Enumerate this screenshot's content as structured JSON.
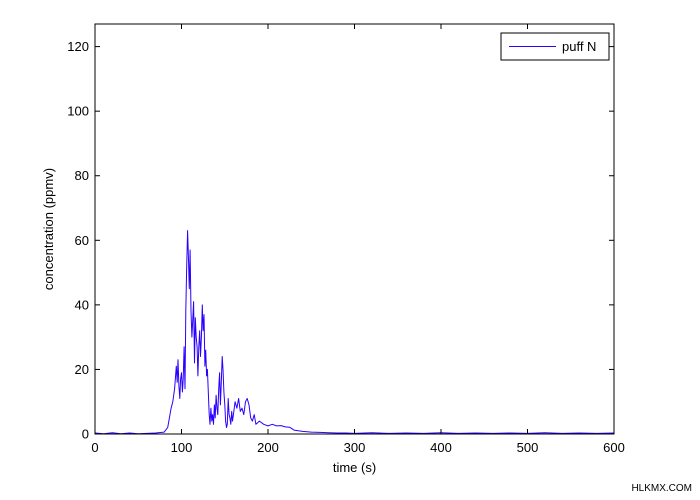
{
  "chart_data": {
    "type": "line",
    "title": "",
    "xlabel": "time (s)",
    "ylabel": "concentration (ppmv)",
    "xlim": [
      0,
      600
    ],
    "ylim": [
      0,
      127
    ],
    "xticks": [
      0,
      100,
      200,
      300,
      400,
      500,
      600
    ],
    "yticks": [
      0,
      20,
      40,
      60,
      80,
      100,
      120
    ],
    "grid": false,
    "legend_position": "top-right",
    "series": [
      {
        "name": "puff N",
        "color": "#2a00ff",
        "x": [
          0,
          10,
          20,
          30,
          40,
          50,
          60,
          70,
          80,
          84,
          86,
          88,
          90,
          92,
          94,
          95,
          96,
          97,
          98,
          99,
          100,
          101,
          102,
          103,
          104,
          105,
          106,
          107,
          108,
          109,
          110,
          111,
          112,
          113,
          114,
          115,
          116,
          117,
          118,
          119,
          120,
          121,
          122,
          123,
          124,
          125,
          126,
          127,
          128,
          129,
          130,
          131,
          132,
          133,
          134,
          135,
          136,
          137,
          138,
          139,
          140,
          141,
          142,
          143,
          144,
          145,
          146,
          147,
          148,
          149,
          150,
          151,
          152,
          153,
          154,
          155,
          156,
          157,
          158,
          159,
          160,
          162,
          164,
          166,
          168,
          170,
          172,
          174,
          176,
          178,
          180,
          182,
          184,
          186,
          188,
          190,
          195,
          200,
          205,
          210,
          215,
          220,
          225,
          230,
          235,
          240,
          250,
          260,
          270,
          280,
          290,
          300,
          320,
          340,
          360,
          380,
          400,
          420,
          440,
          460,
          480,
          500,
          520,
          540,
          560,
          580,
          600
        ],
        "y": [
          0.3,
          0.1,
          0.4,
          0.1,
          0.3,
          0.1,
          0.2,
          0.3,
          0.6,
          2,
          5,
          8,
          10,
          14,
          21,
          16,
          23,
          15,
          11,
          17,
          19,
          13,
          17,
          27,
          14,
          38,
          52,
          63,
          55,
          45,
          57,
          38,
          30,
          35,
          41,
          22,
          36,
          30,
          27,
          18,
          27,
          32,
          24,
          30,
          40,
          32,
          37,
          21,
          26,
          18,
          20,
          13,
          6,
          3,
          8,
          4,
          6,
          3,
          9,
          5,
          12,
          8,
          6,
          14,
          19,
          9,
          16,
          24,
          20,
          13,
          9,
          4,
          2,
          3,
          11,
          6,
          5,
          3,
          7,
          4,
          6,
          10,
          8,
          11,
          7,
          8,
          6,
          10,
          11,
          9,
          5,
          4,
          6,
          3,
          3.5,
          4,
          3,
          2.5,
          3,
          2.5,
          2.6,
          2.2,
          2.1,
          1.2,
          1,
          0.8,
          0.6,
          0.5,
          0.4,
          0.3,
          0.3,
          0.2,
          0.4,
          0.2,
          0.3,
          0.2,
          0.4,
          0.2,
          0.3,
          0.2,
          0.3,
          0.2,
          0.4,
          0.2,
          0.3,
          0.2,
          0.3
        ]
      }
    ]
  },
  "watermark": "HLKMX.COM"
}
